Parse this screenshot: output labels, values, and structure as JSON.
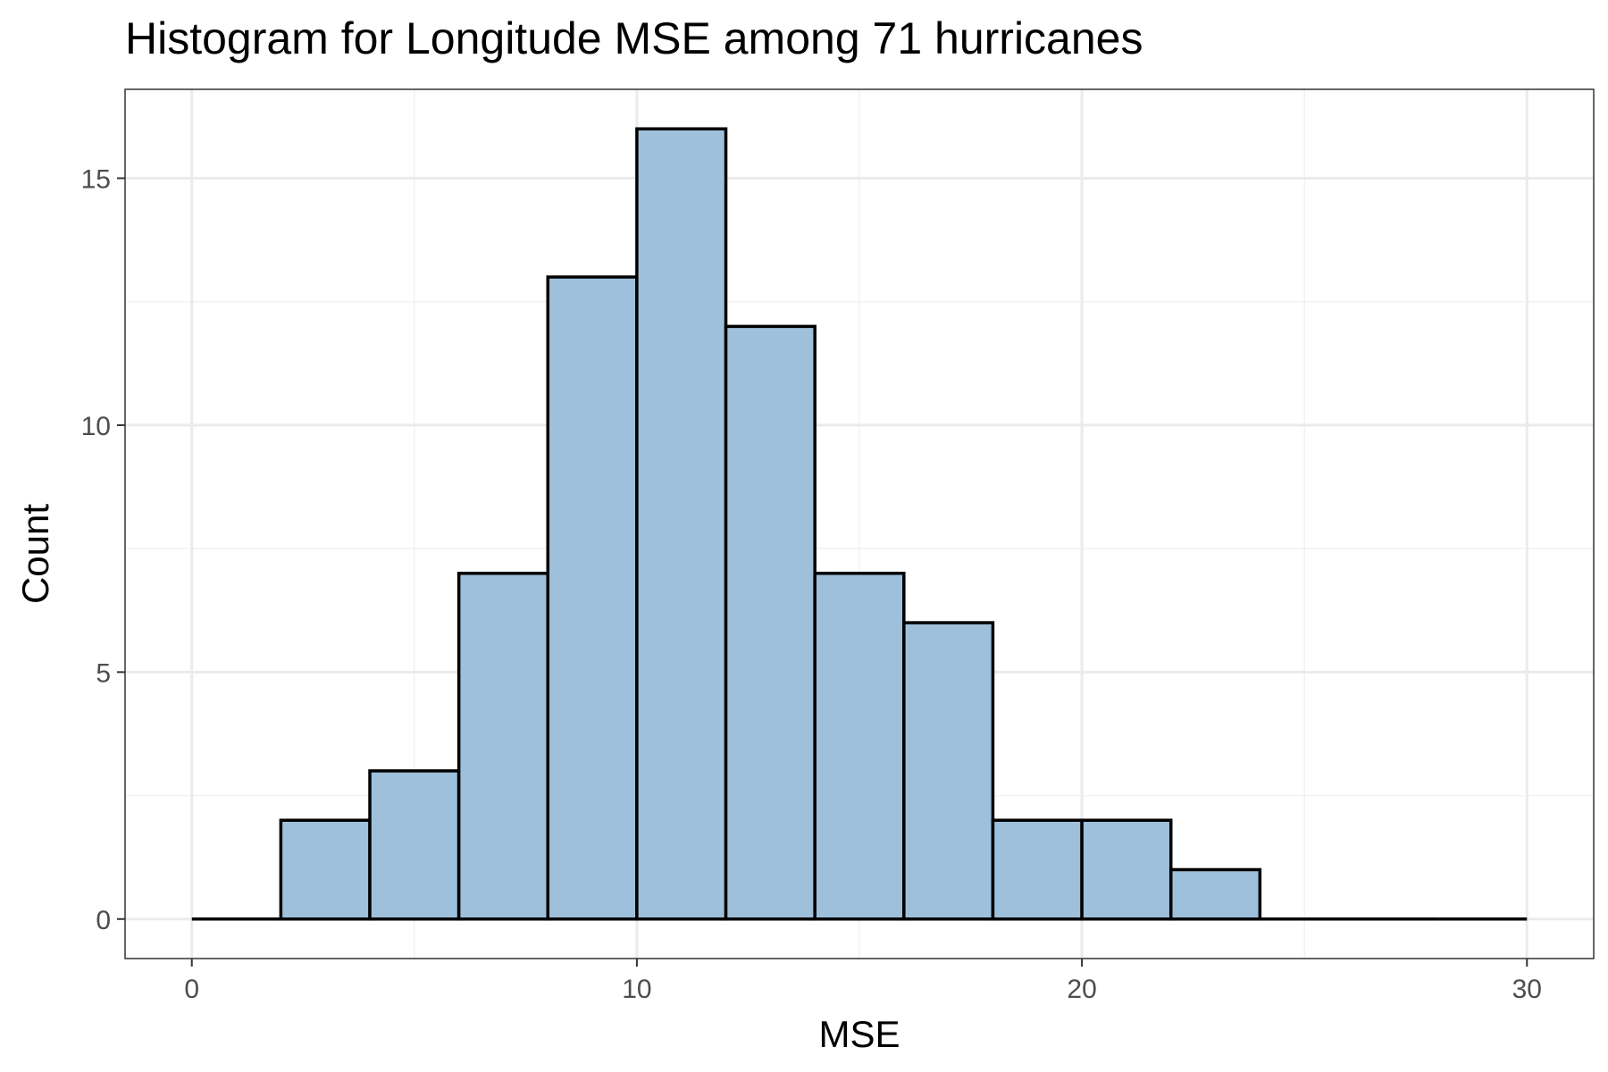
{
  "chart_data": {
    "type": "bar",
    "subtype": "histogram",
    "title": "Histogram for Longitude MSE among 71 hurricanes",
    "xlabel": "MSE",
    "ylabel": "Count",
    "bin_width": 2,
    "bins": [
      {
        "start": 0,
        "end": 2,
        "count": 0
      },
      {
        "start": 2,
        "end": 4,
        "count": 2
      },
      {
        "start": 4,
        "end": 6,
        "count": 3
      },
      {
        "start": 6,
        "end": 8,
        "count": 7
      },
      {
        "start": 8,
        "end": 10,
        "count": 13
      },
      {
        "start": 10,
        "end": 12,
        "count": 16
      },
      {
        "start": 12,
        "end": 14,
        "count": 12
      },
      {
        "start": 14,
        "end": 16,
        "count": 7
      },
      {
        "start": 16,
        "end": 18,
        "count": 6
      },
      {
        "start": 18,
        "end": 20,
        "count": 2
      },
      {
        "start": 20,
        "end": 22,
        "count": 2
      },
      {
        "start": 22,
        "end": 24,
        "count": 1
      },
      {
        "start": 24,
        "end": 26,
        "count": 0
      },
      {
        "start": 26,
        "end": 28,
        "count": 0
      },
      {
        "start": 28,
        "end": 30,
        "count": 0
      }
    ],
    "xlim": [
      -1.5,
      31.5
    ],
    "ylim": [
      -0.8,
      16.8
    ],
    "x_ticks": [
      0,
      10,
      20,
      30
    ],
    "x_minor_ticks": [
      5,
      15,
      25
    ],
    "y_ticks": [
      0,
      5,
      10,
      15
    ],
    "y_minor_ticks": [
      2.5,
      7.5,
      12.5
    ],
    "grid": true,
    "legend": "none",
    "colors": {
      "bar_fill": "#9ec0db",
      "bar_stroke": "#000000",
      "grid_major": "#ebebeb",
      "grid_minor": "#f2f2f2",
      "panel_border": "#333333",
      "tick_label": "#4d4d4d"
    }
  }
}
